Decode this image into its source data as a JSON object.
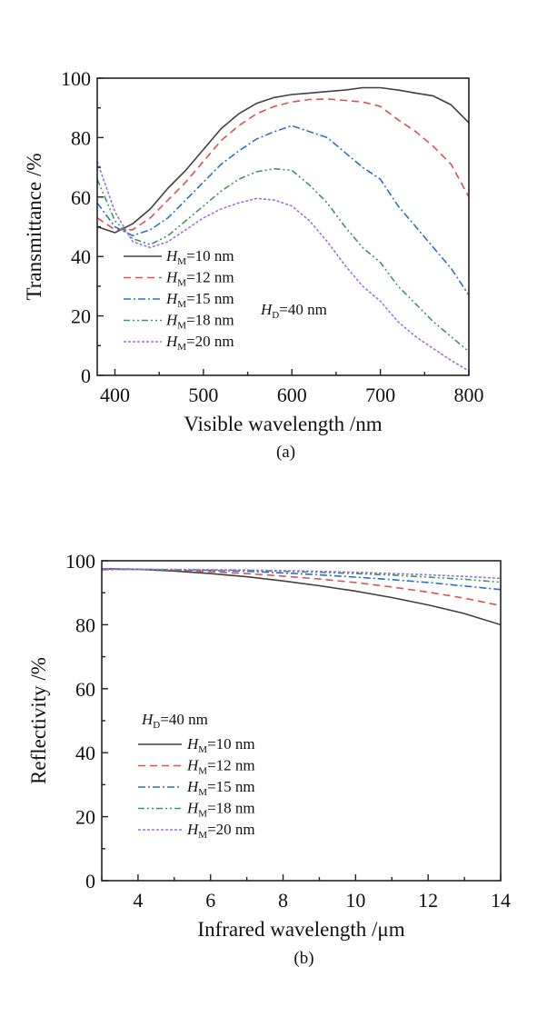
{
  "chart_data": [
    {
      "type": "line",
      "caption": "(a)",
      "title": "",
      "xlabel": "Visible wavelength /nm",
      "ylabel": "Transmittance /%",
      "xlim": [
        380,
        800
      ],
      "ylim": [
        0,
        100
      ],
      "xticks": [
        400,
        500,
        600,
        700,
        800
      ],
      "yticks": [
        0,
        20,
        40,
        60,
        80,
        100
      ],
      "grid": false,
      "legend_position": "bottom-left",
      "annotation": {
        "main": "H",
        "sub": "D",
        "rest": "=40 nm"
      },
      "x": [
        380,
        400,
        420,
        440,
        460,
        480,
        500,
        520,
        540,
        560,
        580,
        600,
        620,
        640,
        660,
        680,
        700,
        720,
        740,
        760,
        780,
        800
      ],
      "series": [
        {
          "name": "HM=10 nm",
          "label_main": "H",
          "label_sub": "M",
          "label_rest": "=10 nm",
          "color": "#404040",
          "dash": "solid",
          "values": [
            50,
            48,
            51,
            56,
            63,
            69,
            76,
            83,
            88,
            91.5,
            93.5,
            94.5,
            95,
            95.5,
            96,
            96.8,
            96.8,
            96,
            95,
            94,
            91,
            85
          ]
        },
        {
          "name": "HM=12 nm",
          "label_main": "H",
          "label_sub": "M",
          "label_rest": "=12 nm",
          "color": "#e05050",
          "dash": "dashed",
          "values": [
            53,
            49,
            49,
            53,
            59,
            65,
            72,
            79,
            84,
            88,
            90.5,
            92,
            92.8,
            93,
            92.5,
            92,
            90.5,
            86,
            82,
            77,
            71,
            60
          ]
        },
        {
          "name": "HM=15 nm",
          "label_main": "H",
          "label_sub": "M",
          "label_rest": "=15 nm",
          "color": "#2a6fd0",
          "dash": "dashdot",
          "values": [
            58,
            50,
            47,
            49,
            53,
            59,
            65,
            71,
            75.5,
            79.5,
            82,
            84,
            82,
            80,
            75,
            70,
            66,
            57,
            50,
            43,
            36,
            27
          ]
        },
        {
          "name": "HM=18 nm",
          "label_main": "H",
          "label_sub": "M",
          "label_rest": "=18 nm",
          "color": "#3a9a5a",
          "dash": "dashdotdot",
          "values": [
            66,
            52,
            46,
            44,
            47,
            52,
            57,
            62,
            66,
            68.5,
            69.5,
            69,
            64,
            58,
            50,
            43,
            38,
            30,
            24,
            18,
            13,
            8
          ]
        },
        {
          "name": "HM=20 nm",
          "label_main": "H",
          "label_sub": "M",
          "label_rest": "=20 nm",
          "color": "#a070e0",
          "dash": "dotted",
          "values": [
            72,
            55,
            45,
            43,
            45,
            49,
            53,
            56,
            58,
            59.5,
            59,
            57,
            52,
            45,
            37,
            30,
            25,
            18,
            13,
            9,
            5,
            1.5
          ]
        }
      ]
    },
    {
      "type": "line",
      "caption": "(b)",
      "title": "",
      "xlabel": "Infrared wavelength /μm",
      "ylabel": "Reflectivity /%",
      "xlim": [
        3,
        14
      ],
      "ylim": [
        0,
        100
      ],
      "xticks": [
        4,
        6,
        8,
        10,
        12,
        14
      ],
      "yticks": [
        0,
        20,
        40,
        60,
        80,
        100
      ],
      "grid": false,
      "legend_position": "center-left",
      "annotation": {
        "main": "H",
        "sub": "D",
        "rest": "=40 nm"
      },
      "x": [
        3,
        4,
        5,
        6,
        7,
        8,
        9,
        10,
        11,
        12,
        13,
        14
      ],
      "series": [
        {
          "name": "HM=10 nm",
          "label_main": "H",
          "label_sub": "M",
          "label_rest": "=10 nm",
          "color": "#404040",
          "dash": "solid",
          "values": [
            97.5,
            97.3,
            96.8,
            96,
            95,
            93.7,
            92.2,
            90.5,
            88.5,
            86.2,
            83.5,
            80
          ]
        },
        {
          "name": "HM=12 nm",
          "label_main": "H",
          "label_sub": "M",
          "label_rest": "=12 nm",
          "color": "#e05050",
          "dash": "dashed",
          "values": [
            97.5,
            97.4,
            97.1,
            96.6,
            96,
            95.2,
            94.3,
            93.2,
            91.8,
            90.2,
            88.3,
            86
          ]
        },
        {
          "name": "HM=15 nm",
          "label_main": "H",
          "label_sub": "M",
          "label_rest": "=15 nm",
          "color": "#2a6fd0",
          "dash": "dashdot",
          "values": [
            97.3,
            97.3,
            97.2,
            97,
            96.7,
            96.2,
            95.6,
            94.9,
            94.1,
            93.2,
            92.1,
            91
          ]
        },
        {
          "name": "HM=18 nm",
          "label_main": "H",
          "label_sub": "M",
          "label_rest": "=18 nm",
          "color": "#3a9a5a",
          "dash": "dashdotdot",
          "values": [
            97.2,
            97.3,
            97.2,
            97.1,
            97,
            96.7,
            96.4,
            96,
            95.5,
            94.9,
            94.2,
            93.3
          ]
        },
        {
          "name": "HM=20 nm",
          "label_main": "H",
          "label_sub": "M",
          "label_rest": "=20 nm",
          "color": "#a070e0",
          "dash": "dotted",
          "values": [
            97.2,
            97.3,
            97.3,
            97.2,
            97.1,
            96.9,
            96.7,
            96.4,
            96,
            95.6,
            95.1,
            94.5
          ]
        }
      ]
    }
  ]
}
